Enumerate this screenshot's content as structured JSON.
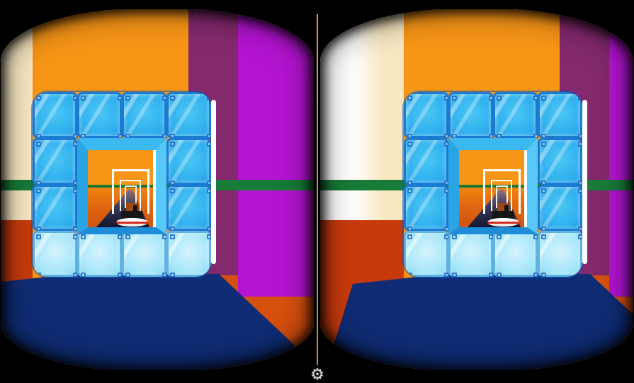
{
  "ui": {
    "settings_icon": {
      "name": "settings-gear-icon",
      "glyph": "⚙"
    },
    "stereo": {
      "eyes": [
        "left",
        "right"
      ],
      "divider": true
    }
  },
  "colors": {
    "background": "#000000",
    "orange_wall": "#F79517",
    "cream_wall": "#F8E7C1",
    "white": "#FFFFFF",
    "maroon_wall": "#84296D",
    "magenta_wall": "#B414D2",
    "magenta_bright": "#C31BE4",
    "horizon_green": "#187B38",
    "floor_navy": "#0F2C75",
    "floor_red": "#C83A0C",
    "floor_red_right": "#D8500E",
    "block_fill": "#2FB0EE",
    "block_border": "#1B7AD2",
    "block_light": "#A5E6FA",
    "tunnel_orange": "#F79517",
    "tunnel_sunset": "#D05410",
    "road_dark": "#131631",
    "frame_white": "#FFFFFF",
    "divider": "#D9985A",
    "gear_icon": "#D8D8D8",
    "vehicle_hull": "#FFFFFF",
    "vehicle_stripe": "#D42B20",
    "vehicle_body": "#161616",
    "vehicle_cab": "#9C4A14"
  }
}
